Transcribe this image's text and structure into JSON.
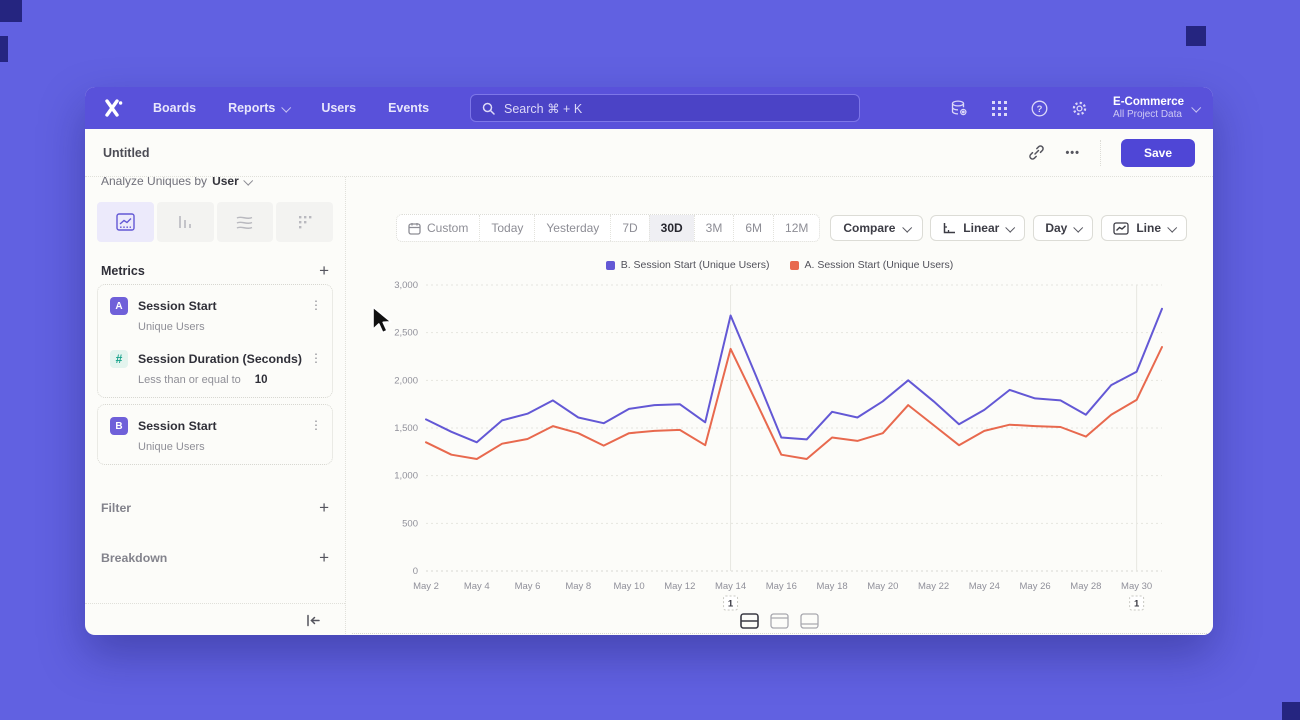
{
  "colors": {
    "accent": "#4f46d6",
    "nav_bg": "#5951da",
    "background": "#6161e1",
    "series_b": "#6358d5",
    "series_a": "#e8694e"
  },
  "nav": {
    "logo": "mixpanel",
    "items": [
      {
        "label": "Boards"
      },
      {
        "label": "Reports",
        "chevron": true
      },
      {
        "label": "Users"
      },
      {
        "label": "Events"
      }
    ],
    "search_placeholder": "Search  ⌘ + K",
    "project_name": "E-Commerce",
    "project_subtitle": "All Project Data"
  },
  "toolbar": {
    "title": "Untitled",
    "ellipsis": "•••",
    "save_label": "Save"
  },
  "sidebar": {
    "analyze_prefix": "Analyze Uniques by",
    "analyze_value": "User",
    "metrics_title": "Metrics",
    "metric_cards": [
      {
        "rows": [
          {
            "badge": "A",
            "badge_style": "purple",
            "title": "Session Start",
            "subtitle": "Unique Users"
          },
          {
            "badge": "#",
            "badge_style": "teal",
            "title": "Session Duration (Seconds)",
            "subtitle": "Less than or equal to",
            "value": "10"
          }
        ]
      },
      {
        "rows": [
          {
            "badge": "B",
            "badge_style": "purple",
            "title": "Session Start",
            "subtitle": "Unique Users"
          }
        ]
      }
    ],
    "sections": [
      {
        "label": "Filter"
      },
      {
        "label": "Breakdown"
      }
    ]
  },
  "controls": {
    "ranges": [
      "Custom",
      "Today",
      "Yesterday",
      "7D",
      "30D",
      "3M",
      "6M",
      "12M"
    ],
    "active_range": "30D",
    "compare_label": "Compare",
    "dropdowns": [
      {
        "label": "Linear",
        "icon": "axis-scale-icon"
      },
      {
        "label": "Day",
        "icon": ""
      },
      {
        "label": "Line",
        "icon": "line-chart-icon"
      }
    ]
  },
  "chart_data": {
    "type": "line",
    "x": [
      "May 2",
      "May 3",
      "May 4",
      "May 5",
      "May 6",
      "May 7",
      "May 8",
      "May 9",
      "May 10",
      "May 11",
      "May 12",
      "May 13",
      "May 14",
      "May 15",
      "May 16",
      "May 17",
      "May 18",
      "May 19",
      "May 20",
      "May 21",
      "May 22",
      "May 23",
      "May 24",
      "May 25",
      "May 26",
      "May 27",
      "May 28",
      "May 29",
      "May 30",
      "May 31"
    ],
    "x_label_every": 2,
    "ylim": [
      0,
      3000
    ],
    "yticks": [
      0,
      500,
      1000,
      1500,
      2000,
      2500,
      3000
    ],
    "grid": "horizontal-dashed",
    "legend_position": "top-center",
    "series": [
      {
        "name": "B. Session Start (Unique Users)",
        "color": "#6358d5",
        "values": [
          1590,
          1460,
          1350,
          1580,
          1650,
          1790,
          1610,
          1550,
          1700,
          1740,
          1750,
          1560,
          2680,
          2050,
          1400,
          1380,
          1670,
          1610,
          1780,
          2000,
          1780,
          1540,
          1690,
          1900,
          1810,
          1790,
          1640,
          1950,
          2090,
          2750
        ]
      },
      {
        "name": "A. Session Start (Unique Users)",
        "color": "#e8694e",
        "values": [
          1350,
          1220,
          1175,
          1335,
          1385,
          1520,
          1445,
          1315,
          1445,
          1470,
          1480,
          1320,
          2330,
          1780,
          1220,
          1175,
          1400,
          1365,
          1445,
          1740,
          1530,
          1320,
          1470,
          1535,
          1520,
          1510,
          1410,
          1640,
          1795,
          2350
        ]
      }
    ],
    "annotations": [
      {
        "x": "May 14",
        "label": "1"
      },
      {
        "x": "May 30",
        "label": "1"
      }
    ]
  },
  "footer": {
    "views": [
      "split-view",
      "top-panel-view",
      "full-panel-view"
    ],
    "active_view": 0
  }
}
